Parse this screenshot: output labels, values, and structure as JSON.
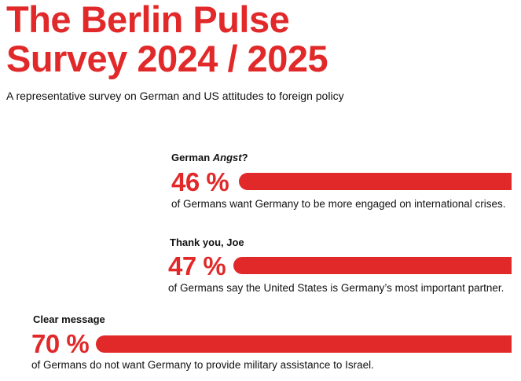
{
  "title_line1": "The Berlin Pulse",
  "title_line2": "Survey 2024 / 2025",
  "subtitle": "A representative survey on German and US attitudes to foreign policy",
  "colors": {
    "accent": "#e1292a",
    "text": "#111111"
  },
  "chart_data": {
    "type": "bar",
    "title": "The Berlin Pulse Survey 2024 / 2025",
    "items": [
      {
        "heading": "German ",
        "heading_italic": "Angst",
        "heading_suffix": "?",
        "value": 46,
        "label": "46 %",
        "description": "of Germans want Germany to be more engaged on international crises."
      },
      {
        "heading": "Thank you, Joe",
        "heading_italic": "",
        "heading_suffix": "",
        "value": 47,
        "label": "47 %",
        "description": "of Germans say the United States is Germany’s most important partner."
      },
      {
        "heading": "Clear message",
        "heading_italic": "",
        "heading_suffix": "",
        "value": 70,
        "label": "70 %",
        "description": "of Germans do not want Germany to provide military assistance to Israel."
      }
    ]
  }
}
